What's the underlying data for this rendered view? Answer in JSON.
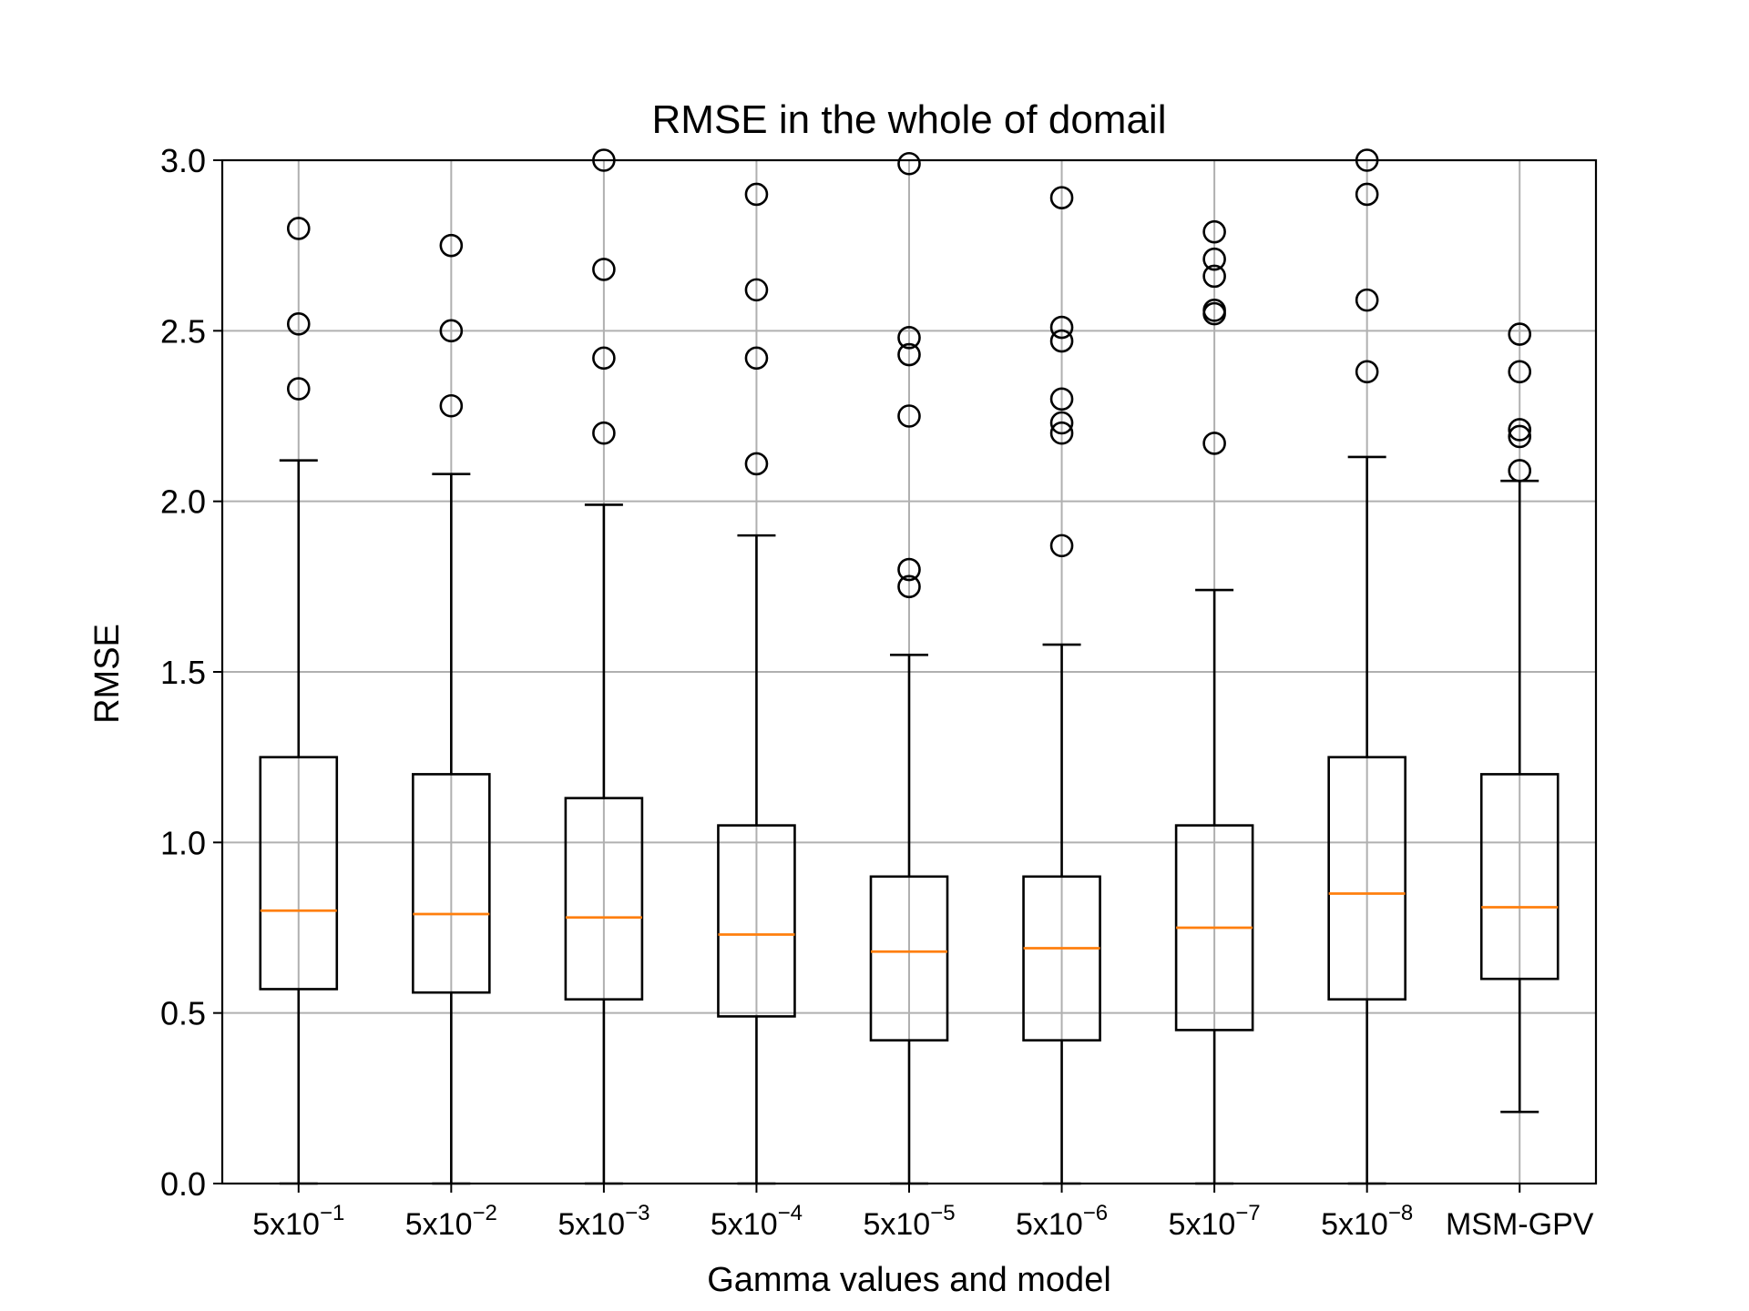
{
  "chart_data": {
    "type": "box",
    "title": "RMSE in the whole of domail",
    "xlabel": "Gamma values and model",
    "ylabel": "RMSE",
    "ylim": [
      0,
      3.0
    ],
    "yticks": [
      "0.0",
      "0.5",
      "1.0",
      "1.5",
      "2.0",
      "2.5",
      "3.0"
    ],
    "grid": true,
    "colors": {
      "box": "#000000",
      "median": "#ff7f0e",
      "grid": "#b0b0b0"
    },
    "categories": [
      {
        "base": "5x10",
        "exp": "−1"
      },
      {
        "base": "5x10",
        "exp": "−2"
      },
      {
        "base": "5x10",
        "exp": "−3"
      },
      {
        "base": "5x10",
        "exp": "−4"
      },
      {
        "base": "5x10",
        "exp": "−5"
      },
      {
        "base": "5x10",
        "exp": "−6"
      },
      {
        "base": "5x10",
        "exp": "−7"
      },
      {
        "base": "5x10",
        "exp": "−8"
      },
      {
        "base": "MSM-GPV",
        "exp": ""
      }
    ],
    "boxes": [
      {
        "whislo": 0.0,
        "q1": 0.57,
        "median": 0.8,
        "q3": 1.25,
        "whishi": 2.12,
        "fliers": [
          2.33,
          2.52,
          2.8
        ]
      },
      {
        "whislo": 0.0,
        "q1": 0.56,
        "median": 0.79,
        "q3": 1.2,
        "whishi": 2.08,
        "fliers": [
          2.28,
          2.5,
          2.75
        ]
      },
      {
        "whislo": 0.0,
        "q1": 0.54,
        "median": 0.78,
        "q3": 1.13,
        "whishi": 1.99,
        "fliers": [
          2.2,
          2.42,
          2.68,
          3.0
        ]
      },
      {
        "whislo": 0.0,
        "q1": 0.49,
        "median": 0.73,
        "q3": 1.05,
        "whishi": 1.9,
        "fliers": [
          2.11,
          2.42,
          2.62,
          2.9
        ]
      },
      {
        "whislo": 0.0,
        "q1": 0.42,
        "median": 0.68,
        "q3": 0.9,
        "whishi": 1.55,
        "fliers": [
          1.75,
          1.8,
          2.25,
          2.43,
          2.48,
          2.99
        ]
      },
      {
        "whislo": 0.0,
        "q1": 0.42,
        "median": 0.69,
        "q3": 0.9,
        "whishi": 1.58,
        "fliers": [
          1.87,
          2.2,
          2.23,
          2.3,
          2.47,
          2.51,
          2.89
        ]
      },
      {
        "whislo": 0.0,
        "q1": 0.45,
        "median": 0.75,
        "q3": 1.05,
        "whishi": 1.74,
        "fliers": [
          2.17,
          2.55,
          2.56,
          2.66,
          2.71,
          2.79
        ]
      },
      {
        "whislo": 0.0,
        "q1": 0.54,
        "median": 0.85,
        "q3": 1.25,
        "whishi": 2.13,
        "fliers": [
          2.38,
          2.59,
          2.9,
          3.0
        ]
      },
      {
        "whislo": 0.21,
        "q1": 0.6,
        "median": 0.81,
        "q3": 1.2,
        "whishi": 2.06,
        "fliers": [
          2.09,
          2.19,
          2.21,
          2.38,
          2.49
        ]
      }
    ]
  }
}
